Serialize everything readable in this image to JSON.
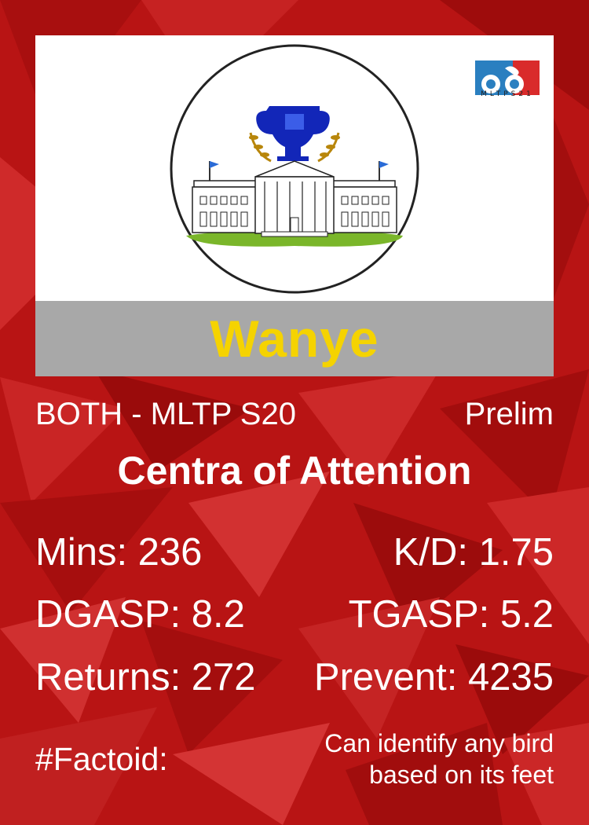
{
  "league": {
    "logo_text": "MLTPS21"
  },
  "player": {
    "name": "Wanye"
  },
  "meta": {
    "division": "BOTH - MLTP S20",
    "stage": "Prelim"
  },
  "award": {
    "title": "Centra of Attention"
  },
  "stats": [
    {
      "left": "Mins: 236",
      "right": "K/D: 1.75"
    },
    {
      "left": "DGASP: 8.2",
      "right": "TGASP: 5.2"
    },
    {
      "left": "Returns: 272",
      "right": "Prevent: 4235"
    }
  ],
  "factoid": {
    "label": "#Factoid:",
    "lines": [
      "Can identify any bird",
      "based on its feet"
    ]
  },
  "colors": {
    "background": "#b81414",
    "name": "#f5d300",
    "band": "#a8a8a8",
    "text": "#ffffff"
  },
  "icons": {
    "emblem": "white-house-trophy-icon",
    "league": "mltp-logo-icon"
  }
}
